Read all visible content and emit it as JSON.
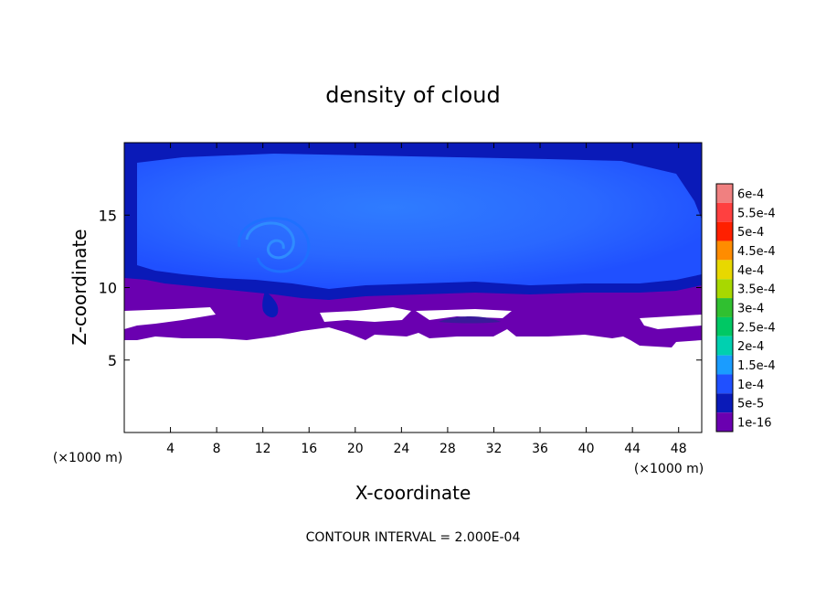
{
  "chart_data": {
    "type": "heatmap",
    "title": "density of cloud",
    "xlabel": "X-coordinate",
    "ylabel": "Z-coordinate",
    "x_unit_label": "(×1000 m)",
    "y_unit_label": "(×1000 m)",
    "xlim": [
      0,
      50
    ],
    "ylim": [
      0,
      20
    ],
    "x_ticks": [
      4,
      8,
      12,
      16,
      20,
      24,
      28,
      32,
      36,
      40,
      44,
      48
    ],
    "y_ticks": [
      5,
      10,
      15
    ],
    "footer": "CONTOUR INTERVAL = 2.000E-04",
    "colorbar": {
      "levels": [
        {
          "label": "6e-4",
          "color": "#f08080"
        },
        {
          "label": "5.5e-4",
          "color": "#ff4040"
        },
        {
          "label": "5e-4",
          "color": "#ff2000"
        },
        {
          "label": "4.5e-4",
          "color": "#ff8c00"
        },
        {
          "label": "4e-4",
          "color": "#e8d800"
        },
        {
          "label": "3.5e-4",
          "color": "#a8d800"
        },
        {
          "label": "3e-4",
          "color": "#30c030"
        },
        {
          "label": "2.5e-4",
          "color": "#00c864"
        },
        {
          "label": "2e-4",
          "color": "#00d0b0"
        },
        {
          "label": "1.5e-4",
          "color": "#1a9cff"
        },
        {
          "label": "1e-4",
          "color": "#2050ff"
        },
        {
          "label": "5e-5",
          "color": "#0a1ab8"
        },
        {
          "label": "1e-16",
          "color": "#6a00b0"
        }
      ]
    },
    "field": {
      "cloud_top_z": 19.5,
      "cloud_base_z": 9.8,
      "background_cloud_lower_z": 6.5,
      "core_level": "1e-4",
      "edge_level": "5e-5",
      "lower_level": "1e-16",
      "eddy_center": [
        12.5,
        12.5
      ]
    }
  }
}
